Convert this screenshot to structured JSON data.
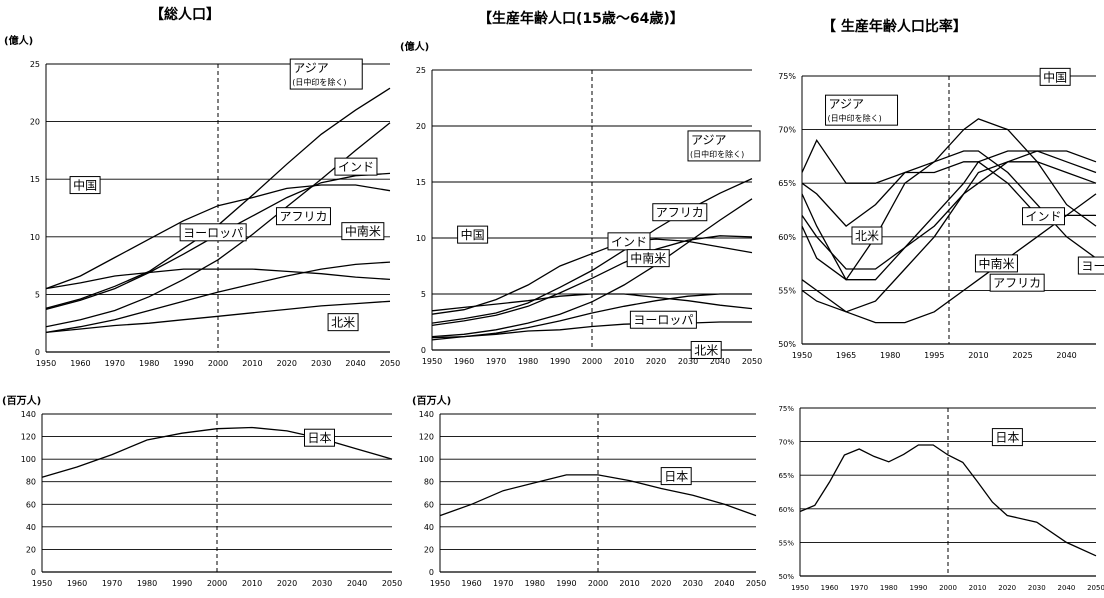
{
  "titles": {
    "total": "【総人口】",
    "working": "【生産年齢人口(15歳～64歳)】",
    "ratio": "【 生産年齢人口比率】"
  },
  "chart_data": [
    {
      "id": "total-world",
      "type": "line",
      "title": "【総人口】",
      "ylabel": "(億人)",
      "x_ticks": [
        "1950",
        "1960",
        "1970",
        "1980",
        "1990",
        "2000",
        "2010",
        "2020",
        "2030",
        "2040",
        "2050"
      ],
      "xlim": [
        1950,
        2050
      ],
      "ylim": [
        0,
        25
      ],
      "y_ticks": [
        "0",
        "5",
        "10",
        "15",
        "20",
        "25"
      ],
      "grid": "horizontal",
      "vline": 2000,
      "series": [
        {
          "name": "アジア",
          "sublabel": "(日中印を除く)",
          "x": [
            1950,
            1960,
            1970,
            1980,
            1990,
            2000,
            2010,
            2020,
            2030,
            2040,
            2050
          ],
          "y": [
            3.8,
            4.6,
            5.7,
            7.0,
            9.0,
            11.0,
            13.6,
            16.3,
            18.9,
            21.0,
            22.9
          ]
        },
        {
          "name": "中国",
          "x": [
            1950,
            1960,
            1970,
            1980,
            1990,
            2000,
            2010,
            2020,
            2030,
            2040,
            2050
          ],
          "y": [
            5.5,
            6.6,
            8.2,
            9.8,
            11.4,
            12.7,
            13.4,
            14.2,
            14.5,
            14.5,
            14.0
          ]
        },
        {
          "name": "インド",
          "x": [
            1950,
            1960,
            1970,
            1980,
            1990,
            2000,
            2010,
            2020,
            2030,
            2040,
            2050
          ],
          "y": [
            3.7,
            4.5,
            5.5,
            6.9,
            8.5,
            10.2,
            11.8,
            13.4,
            14.7,
            15.3,
            15.5
          ]
        },
        {
          "name": "アフリカ",
          "x": [
            1950,
            1960,
            1970,
            1980,
            1990,
            2000,
            2010,
            2020,
            2030,
            2040,
            2050
          ],
          "y": [
            2.2,
            2.8,
            3.6,
            4.8,
            6.3,
            8.0,
            10.2,
            12.6,
            15.0,
            17.5,
            19.9
          ]
        },
        {
          "name": "ヨーロッパ",
          "x": [
            1950,
            1960,
            1970,
            1980,
            1990,
            2000,
            2010,
            2020,
            2030,
            2040,
            2050
          ],
          "y": [
            5.5,
            6.0,
            6.6,
            6.9,
            7.2,
            7.2,
            7.2,
            7.0,
            6.8,
            6.5,
            6.3
          ]
        },
        {
          "name": "中南米",
          "x": [
            1950,
            1960,
            1970,
            1980,
            1990,
            2000,
            2010,
            2020,
            2030,
            2040,
            2050
          ],
          "y": [
            1.7,
            2.2,
            2.8,
            3.6,
            4.4,
            5.2,
            5.9,
            6.6,
            7.2,
            7.6,
            7.8
          ]
        },
        {
          "name": "北米",
          "x": [
            1950,
            1960,
            1970,
            1980,
            1990,
            2000,
            2010,
            2020,
            2030,
            2040,
            2050
          ],
          "y": [
            1.7,
            2.0,
            2.3,
            2.5,
            2.8,
            3.1,
            3.4,
            3.7,
            4.0,
            4.2,
            4.4
          ]
        }
      ]
    },
    {
      "id": "working-world",
      "type": "line",
      "title": "【生産年齢人口(15歳～64歳)】",
      "ylabel": "(億人)",
      "x_ticks": [
        "1950",
        "1960",
        "1970",
        "1980",
        "1990",
        "2000",
        "2010",
        "2020",
        "2030",
        "2040",
        "2050"
      ],
      "xlim": [
        1950,
        2050
      ],
      "ylim": [
        0,
        25
      ],
      "y_ticks": [
        "0",
        "5",
        "10",
        "15",
        "20",
        "25"
      ],
      "grid": "horizontal",
      "vline": 2000,
      "series": [
        {
          "name": "アジア",
          "sublabel": "(日中印を除く)",
          "x": [
            1950,
            1960,
            1970,
            1980,
            1990,
            2000,
            2010,
            2020,
            2030,
            2040,
            2050
          ],
          "y": [
            2.4,
            2.8,
            3.3,
            4.2,
            5.6,
            7.1,
            8.9,
            10.8,
            12.5,
            14.0,
            15.3
          ]
        },
        {
          "name": "中国",
          "x": [
            1950,
            1960,
            1970,
            1980,
            1990,
            2000,
            2010,
            2020,
            2030,
            2040,
            2050
          ],
          "y": [
            3.2,
            3.6,
            4.5,
            5.8,
            7.5,
            8.6,
            9.7,
            9.9,
            9.7,
            9.2,
            8.7
          ]
        },
        {
          "name": "インド",
          "x": [
            1950,
            1960,
            1970,
            1980,
            1990,
            2000,
            2010,
            2020,
            2030,
            2040,
            2050
          ],
          "y": [
            2.2,
            2.6,
            3.1,
            3.9,
            5.1,
            6.4,
            7.8,
            9.0,
            9.8,
            10.2,
            10.1
          ]
        },
        {
          "name": "アフリカ",
          "x": [
            1950,
            1960,
            1970,
            1980,
            1990,
            2000,
            2010,
            2020,
            2030,
            2040,
            2050
          ],
          "y": [
            1.2,
            1.4,
            1.8,
            2.4,
            3.2,
            4.3,
            5.8,
            7.6,
            9.6,
            11.6,
            13.5
          ]
        },
        {
          "name": "中南米",
          "x": [
            1950,
            1960,
            1970,
            1980,
            1990,
            2000,
            2010,
            2020,
            2030,
            2040,
            2050
          ],
          "y": [
            0.9,
            1.2,
            1.5,
            2.0,
            2.6,
            3.3,
            3.9,
            4.4,
            4.8,
            5.0,
            5.0
          ]
        },
        {
          "name": "ヨーロッパ",
          "x": [
            1950,
            1960,
            1970,
            1980,
            1990,
            2000,
            2010,
            2020,
            2030,
            2040,
            2050
          ],
          "y": [
            3.5,
            3.8,
            4.1,
            4.4,
            4.8,
            5.0,
            5.0,
            4.7,
            4.4,
            4.0,
            3.7
          ]
        },
        {
          "name": "北米",
          "x": [
            1950,
            1960,
            1970,
            1980,
            1990,
            2000,
            2010,
            2020,
            2030,
            2040,
            2050
          ],
          "y": [
            1.1,
            1.2,
            1.4,
            1.7,
            1.8,
            2.1,
            2.3,
            2.4,
            2.4,
            2.5,
            2.5
          ]
        }
      ]
    },
    {
      "id": "ratio-world",
      "type": "line",
      "title": "【 生産年齢人口比率】",
      "ylabel": "",
      "x_ticks": [
        "1950",
        "1965",
        "1980",
        "1995",
        "2010",
        "2025",
        "2040"
      ],
      "xlim": [
        1950,
        2050
      ],
      "ylim": [
        50,
        75
      ],
      "y_ticks": [
        "50%",
        "55%",
        "60%",
        "65%",
        "70%",
        "75%"
      ],
      "grid": "horizontal",
      "vline": 2000,
      "series": [
        {
          "name": "中国",
          "x": [
            1950,
            1955,
            1965,
            1975,
            1985,
            1995,
            2005,
            2010,
            2020,
            2030,
            2040,
            2050
          ],
          "y": [
            61,
            58,
            56,
            60,
            65,
            67,
            70,
            71,
            70,
            67,
            63,
            61
          ]
        },
        {
          "name": "アジア",
          "sublabel": "(日中印を除く)",
          "x": [
            1950,
            1955,
            1965,
            1975,
            1985,
            1995,
            2005,
            2010,
            2020,
            2030,
            2040,
            2050
          ],
          "y": [
            64,
            61,
            56,
            56,
            59,
            62,
            65,
            67,
            68,
            68,
            67,
            66
          ]
        },
        {
          "name": "インド",
          "x": [
            1950,
            1955,
            1965,
            1975,
            1985,
            1995,
            2005,
            2010,
            2020,
            2030,
            2040,
            2050
          ],
          "y": [
            62,
            60,
            57,
            57,
            59,
            61,
            64,
            65,
            67,
            68,
            68,
            67
          ]
        },
        {
          "name": "北米",
          "x": [
            1950,
            1955,
            1965,
            1975,
            1985,
            1995,
            2005,
            2010,
            2020,
            2030,
            2040,
            2050
          ],
          "y": [
            65,
            64,
            61,
            63,
            66,
            66,
            67,
            67,
            65,
            62,
            62,
            62
          ]
        },
        {
          "name": "中南米",
          "x": [
            1950,
            1955,
            1965,
            1975,
            1985,
            1995,
            2005,
            2010,
            2020,
            2030,
            2040,
            2050
          ],
          "y": [
            56,
            55,
            53,
            54,
            57,
            60,
            64,
            66,
            67,
            67,
            66,
            65
          ]
        },
        {
          "name": "ヨーロッパ",
          "x": [
            1950,
            1955,
            1965,
            1975,
            1985,
            1995,
            2005,
            2010,
            2020,
            2030,
            2040,
            2050
          ],
          "y": [
            66,
            69,
            65,
            65,
            66,
            67,
            68,
            68,
            66,
            63,
            60,
            58
          ]
        },
        {
          "name": "アフリカ",
          "x": [
            1950,
            1955,
            1965,
            1975,
            1985,
            1995,
            2005,
            2010,
            2020,
            2030,
            2040,
            2050
          ],
          "y": [
            55,
            54,
            53,
            52,
            52,
            53,
            55,
            56,
            58,
            60,
            62,
            64
          ]
        }
      ]
    },
    {
      "id": "total-japan",
      "type": "line",
      "ylabel": "(百万人)",
      "x_ticks": [
        "1950",
        "1960",
        "1970",
        "1980",
        "1990",
        "2000",
        "2010",
        "2020",
        "2030",
        "2040",
        "2050"
      ],
      "xlim": [
        1950,
        2050
      ],
      "ylim": [
        0,
        140
      ],
      "y_ticks": [
        "0",
        "20",
        "40",
        "60",
        "80",
        "100",
        "120",
        "140"
      ],
      "grid": "horizontal",
      "vline": 2000,
      "series": [
        {
          "name": "日本",
          "x": [
            1950,
            1960,
            1970,
            1980,
            1990,
            2000,
            2010,
            2020,
            2030,
            2040,
            2050
          ],
          "y": [
            84,
            93,
            104,
            117,
            123,
            127,
            128,
            125,
            118,
            109,
            100
          ]
        }
      ]
    },
    {
      "id": "working-japan",
      "type": "line",
      "ylabel": "(百万人)",
      "x_ticks": [
        "1950",
        "1960",
        "1970",
        "1980",
        "1990",
        "2000",
        "2010",
        "2020",
        "2030",
        "2040",
        "2050"
      ],
      "xlim": [
        1950,
        2050
      ],
      "ylim": [
        0,
        140
      ],
      "y_ticks": [
        "0",
        "20",
        "40",
        "60",
        "80",
        "100",
        "120",
        "140"
      ],
      "grid": "horizontal",
      "vline": 2000,
      "series": [
        {
          "name": "日本",
          "x": [
            1950,
            1960,
            1970,
            1980,
            1990,
            2000,
            2010,
            2020,
            2030,
            2040,
            2050
          ],
          "y": [
            50,
            60,
            72,
            79,
            86,
            86,
            81,
            74,
            68,
            60,
            50
          ]
        }
      ]
    },
    {
      "id": "ratio-japan",
      "type": "line",
      "ylabel": "",
      "x_ticks": [
        "1950",
        "1960",
        "1970",
        "1980",
        "1990",
        "2000",
        "2010",
        "2020",
        "2030",
        "2040",
        "2050"
      ],
      "xlim": [
        1950,
        2050
      ],
      "ylim": [
        50,
        75
      ],
      "y_ticks": [
        "50%",
        "55%",
        "60%",
        "65%",
        "70%",
        "75%"
      ],
      "grid": "horizontal",
      "vline": 2000,
      "series": [
        {
          "name": "日本",
          "x": [
            1950,
            1955,
            1960,
            1965,
            1970,
            1975,
            1980,
            1985,
            1990,
            1995,
            2000,
            2005,
            2010,
            2015,
            2020,
            2030,
            2040,
            2050
          ],
          "y": [
            59.6,
            60.5,
            64,
            68,
            68.9,
            67.8,
            67,
            68.1,
            69.5,
            69.5,
            68,
            66.9,
            64,
            61,
            59,
            58,
            55,
            53
          ]
        }
      ]
    }
  ]
}
